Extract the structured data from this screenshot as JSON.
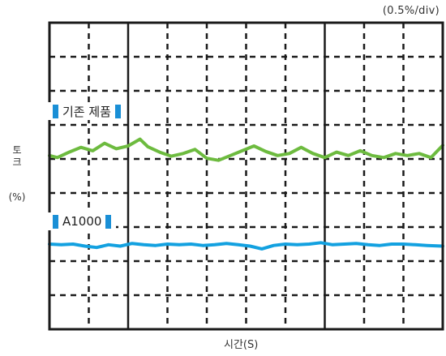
{
  "chart_data": {
    "type": "line",
    "scale_label": "(0.5%/div)",
    "ylabel": "토크",
    "yunit": "(%)",
    "xlabel": "시간(S)",
    "ylim": [
      0,
      4.5
    ],
    "xlim": [
      0,
      10
    ],
    "grid": true,
    "series": [
      {
        "name": "기존 제품",
        "color": "#6dbb3f",
        "x": [
          0,
          0.2,
          0.5,
          0.8,
          1.1,
          1.4,
          1.7,
          2.0,
          2.3,
          2.5,
          2.8,
          3.1,
          3.4,
          3.7,
          4.0,
          4.3,
          4.6,
          4.9,
          5.2,
          5.5,
          5.8,
          6.1,
          6.4,
          6.7,
          7.0,
          7.3,
          7.6,
          7.9,
          8.2,
          8.5,
          8.8,
          9.1,
          9.4,
          9.7,
          10.0
        ],
        "y": [
          2.55,
          2.52,
          2.6,
          2.67,
          2.62,
          2.73,
          2.65,
          2.69,
          2.79,
          2.68,
          2.6,
          2.54,
          2.58,
          2.64,
          2.51,
          2.48,
          2.55,
          2.62,
          2.69,
          2.61,
          2.55,
          2.58,
          2.67,
          2.58,
          2.52,
          2.6,
          2.55,
          2.62,
          2.55,
          2.52,
          2.58,
          2.55,
          2.58,
          2.52,
          2.7
        ]
      },
      {
        "name": "A1000",
        "color": "#13a1e0",
        "x": [
          0,
          0.3,
          0.6,
          0.9,
          1.2,
          1.5,
          1.8,
          2.1,
          2.4,
          2.7,
          3.0,
          3.3,
          3.6,
          3.9,
          4.2,
          4.5,
          4.8,
          5.1,
          5.4,
          5.7,
          6.0,
          6.3,
          6.6,
          6.9,
          7.2,
          7.5,
          7.8,
          8.1,
          8.4,
          8.7,
          9.0,
          9.3,
          9.6,
          10.0
        ],
        "y": [
          1.25,
          1.24,
          1.25,
          1.22,
          1.2,
          1.24,
          1.22,
          1.26,
          1.24,
          1.23,
          1.25,
          1.24,
          1.25,
          1.23,
          1.24,
          1.26,
          1.24,
          1.22,
          1.18,
          1.23,
          1.25,
          1.24,
          1.25,
          1.27,
          1.24,
          1.25,
          1.26,
          1.24,
          1.23,
          1.25,
          1.25,
          1.24,
          1.23,
          1.22
        ]
      }
    ]
  }
}
